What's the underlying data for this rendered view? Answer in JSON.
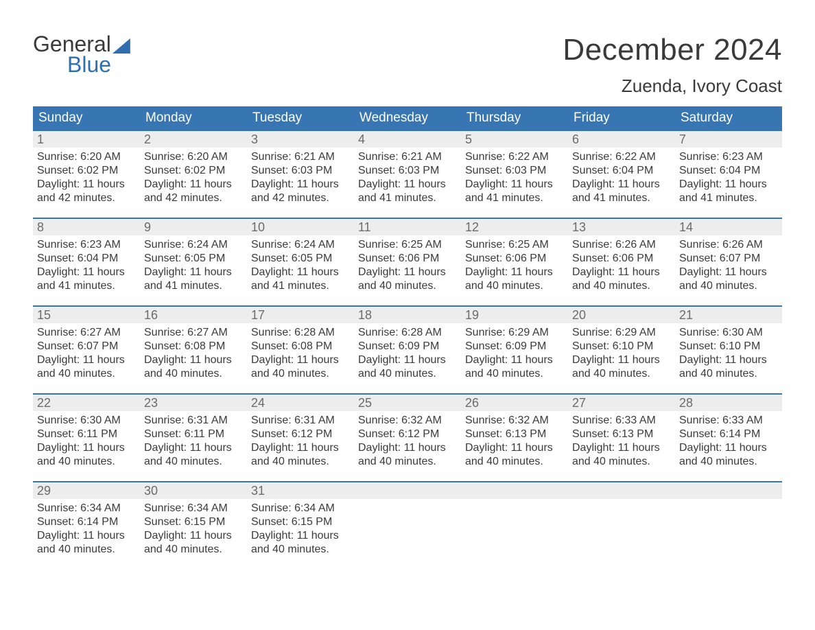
{
  "logo": {
    "word1": "General",
    "word2": "Blue"
  },
  "title": "December 2024",
  "location": "Zuenda, Ivory Coast",
  "colors": {
    "header_bg": "#3875b3",
    "header_text": "#ffffff",
    "daynum_bg": "#ededed",
    "daynum_text": "#6b6b6b",
    "body_text": "#3a3a3a",
    "brand_blue": "#2f6fb0",
    "page_bg": "#ffffff",
    "row_border": "#3875b3"
  },
  "typography": {
    "title_fontsize": 44,
    "location_fontsize": 26,
    "weekday_fontsize": 19,
    "daynum_fontsize": 18,
    "detail_fontsize": 16,
    "logo_fontsize": 32
  },
  "weekdays": [
    "Sunday",
    "Monday",
    "Tuesday",
    "Wednesday",
    "Thursday",
    "Friday",
    "Saturday"
  ],
  "labels": {
    "sunrise": "Sunrise: ",
    "sunset": "Sunset: ",
    "daylight_prefix": "Daylight: "
  },
  "weeks": [
    [
      {
        "day": 1,
        "sunrise": "6:20 AM",
        "sunset": "6:02 PM",
        "daylight": "11 hours and 42 minutes."
      },
      {
        "day": 2,
        "sunrise": "6:20 AM",
        "sunset": "6:02 PM",
        "daylight": "11 hours and 42 minutes."
      },
      {
        "day": 3,
        "sunrise": "6:21 AM",
        "sunset": "6:03 PM",
        "daylight": "11 hours and 42 minutes."
      },
      {
        "day": 4,
        "sunrise": "6:21 AM",
        "sunset": "6:03 PM",
        "daylight": "11 hours and 41 minutes."
      },
      {
        "day": 5,
        "sunrise": "6:22 AM",
        "sunset": "6:03 PM",
        "daylight": "11 hours and 41 minutes."
      },
      {
        "day": 6,
        "sunrise": "6:22 AM",
        "sunset": "6:04 PM",
        "daylight": "11 hours and 41 minutes."
      },
      {
        "day": 7,
        "sunrise": "6:23 AM",
        "sunset": "6:04 PM",
        "daylight": "11 hours and 41 minutes."
      }
    ],
    [
      {
        "day": 8,
        "sunrise": "6:23 AM",
        "sunset": "6:04 PM",
        "daylight": "11 hours and 41 minutes."
      },
      {
        "day": 9,
        "sunrise": "6:24 AM",
        "sunset": "6:05 PM",
        "daylight": "11 hours and 41 minutes."
      },
      {
        "day": 10,
        "sunrise": "6:24 AM",
        "sunset": "6:05 PM",
        "daylight": "11 hours and 41 minutes."
      },
      {
        "day": 11,
        "sunrise": "6:25 AM",
        "sunset": "6:06 PM",
        "daylight": "11 hours and 40 minutes."
      },
      {
        "day": 12,
        "sunrise": "6:25 AM",
        "sunset": "6:06 PM",
        "daylight": "11 hours and 40 minutes."
      },
      {
        "day": 13,
        "sunrise": "6:26 AM",
        "sunset": "6:06 PM",
        "daylight": "11 hours and 40 minutes."
      },
      {
        "day": 14,
        "sunrise": "6:26 AM",
        "sunset": "6:07 PM",
        "daylight": "11 hours and 40 minutes."
      }
    ],
    [
      {
        "day": 15,
        "sunrise": "6:27 AM",
        "sunset": "6:07 PM",
        "daylight": "11 hours and 40 minutes."
      },
      {
        "day": 16,
        "sunrise": "6:27 AM",
        "sunset": "6:08 PM",
        "daylight": "11 hours and 40 minutes."
      },
      {
        "day": 17,
        "sunrise": "6:28 AM",
        "sunset": "6:08 PM",
        "daylight": "11 hours and 40 minutes."
      },
      {
        "day": 18,
        "sunrise": "6:28 AM",
        "sunset": "6:09 PM",
        "daylight": "11 hours and 40 minutes."
      },
      {
        "day": 19,
        "sunrise": "6:29 AM",
        "sunset": "6:09 PM",
        "daylight": "11 hours and 40 minutes."
      },
      {
        "day": 20,
        "sunrise": "6:29 AM",
        "sunset": "6:10 PM",
        "daylight": "11 hours and 40 minutes."
      },
      {
        "day": 21,
        "sunrise": "6:30 AM",
        "sunset": "6:10 PM",
        "daylight": "11 hours and 40 minutes."
      }
    ],
    [
      {
        "day": 22,
        "sunrise": "6:30 AM",
        "sunset": "6:11 PM",
        "daylight": "11 hours and 40 minutes."
      },
      {
        "day": 23,
        "sunrise": "6:31 AM",
        "sunset": "6:11 PM",
        "daylight": "11 hours and 40 minutes."
      },
      {
        "day": 24,
        "sunrise": "6:31 AM",
        "sunset": "6:12 PM",
        "daylight": "11 hours and 40 minutes."
      },
      {
        "day": 25,
        "sunrise": "6:32 AM",
        "sunset": "6:12 PM",
        "daylight": "11 hours and 40 minutes."
      },
      {
        "day": 26,
        "sunrise": "6:32 AM",
        "sunset": "6:13 PM",
        "daylight": "11 hours and 40 minutes."
      },
      {
        "day": 27,
        "sunrise": "6:33 AM",
        "sunset": "6:13 PM",
        "daylight": "11 hours and 40 minutes."
      },
      {
        "day": 28,
        "sunrise": "6:33 AM",
        "sunset": "6:14 PM",
        "daylight": "11 hours and 40 minutes."
      }
    ],
    [
      {
        "day": 29,
        "sunrise": "6:34 AM",
        "sunset": "6:14 PM",
        "daylight": "11 hours and 40 minutes."
      },
      {
        "day": 30,
        "sunrise": "6:34 AM",
        "sunset": "6:15 PM",
        "daylight": "11 hours and 40 minutes."
      },
      {
        "day": 31,
        "sunrise": "6:34 AM",
        "sunset": "6:15 PM",
        "daylight": "11 hours and 40 minutes."
      },
      null,
      null,
      null,
      null
    ]
  ]
}
